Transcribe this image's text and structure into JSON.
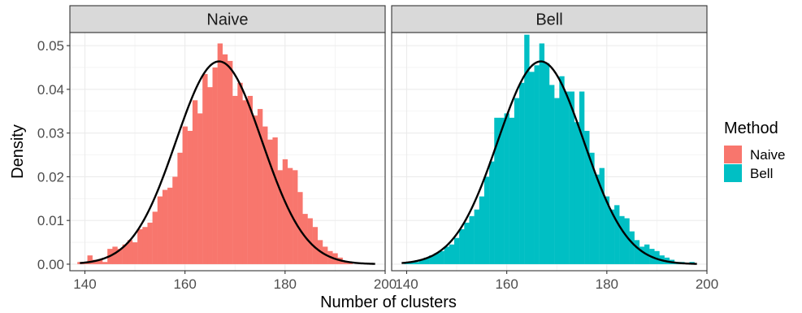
{
  "chart_data": {
    "type": "bar",
    "subtype": "faceted-histogram-with-density-curve",
    "xlabel": "Number of clusters",
    "ylabel": "Density",
    "xlim": [
      137,
      200
    ],
    "ylim": [
      -0.0015,
      0.053
    ],
    "x_ticks": [
      140,
      160,
      180,
      200
    ],
    "x_tick_labels": [
      "140",
      "160",
      "180",
      "200"
    ],
    "y_ticks": [
      0.0,
      0.01,
      0.02,
      0.03,
      0.04,
      0.05
    ],
    "y_tick_labels": [
      "0.00",
      "0.01",
      "0.02",
      "0.03",
      "0.04",
      "0.05"
    ],
    "grid": true,
    "bin_width": 1,
    "legend": {
      "title": "Method",
      "position": "right",
      "entries": [
        {
          "label": "Naive",
          "color": "#F8766D"
        },
        {
          "label": "Bell",
          "color": "#00BFC4"
        }
      ]
    },
    "curve": {
      "color": "#000000",
      "mean": 166.8,
      "sd": 8.6,
      "x_range": [
        139,
        198
      ]
    },
    "panels": [
      {
        "title": "Naive",
        "color": "#F8766D",
        "bins": [
          [
            139,
            0.0005
          ],
          [
            140,
            0.0005
          ],
          [
            141,
            0.002
          ],
          [
            142,
            0.001
          ],
          [
            143,
            0.001
          ],
          [
            144,
            0.0005
          ],
          [
            145,
            0.0035
          ],
          [
            146,
            0.004
          ],
          [
            147,
            0.0035
          ],
          [
            148,
            0.0045
          ],
          [
            149,
            0.0055
          ],
          [
            150,
            0.005
          ],
          [
            151,
            0.008
          ],
          [
            152,
            0.0085
          ],
          [
            153,
            0.0095
          ],
          [
            154,
            0.012
          ],
          [
            155,
            0.0155
          ],
          [
            156,
            0.017
          ],
          [
            157,
            0.0175
          ],
          [
            158,
            0.02
          ],
          [
            159,
            0.0255
          ],
          [
            160,
            0.0315
          ],
          [
            161,
            0.0305
          ],
          [
            162,
            0.0375
          ],
          [
            163,
            0.0345
          ],
          [
            164,
            0.0435
          ],
          [
            165,
            0.0405
          ],
          [
            166,
            0.045
          ],
          [
            167,
            0.0505
          ],
          [
            168,
            0.048
          ],
          [
            169,
            0.0465
          ],
          [
            170,
            0.0385
          ],
          [
            171,
            0.0415
          ],
          [
            172,
            0.0375
          ],
          [
            173,
            0.0385
          ],
          [
            174,
            0.034
          ],
          [
            175,
            0.0355
          ],
          [
            176,
            0.0315
          ],
          [
            177,
            0.0285
          ],
          [
            178,
            0.029
          ],
          [
            179,
            0.0215
          ],
          [
            180,
            0.024
          ],
          [
            181,
            0.022
          ],
          [
            182,
            0.0215
          ],
          [
            183,
            0.0165
          ],
          [
            184,
            0.0115
          ],
          [
            185,
            0.0105
          ],
          [
            186,
            0.0085
          ],
          [
            187,
            0.0055
          ],
          [
            188,
            0.004
          ],
          [
            189,
            0.003
          ],
          [
            190,
            0.0025
          ],
          [
            191,
            0.0015
          ],
          [
            192,
            0.0005
          ],
          [
            193,
            0.0005
          ]
        ]
      },
      {
        "title": "Bell",
        "color": "#00BFC4",
        "bins": [
          [
            140,
            0.0003
          ],
          [
            141,
            0.0005
          ],
          [
            142,
            0.0005
          ],
          [
            143,
            0.001
          ],
          [
            144,
            0.0015
          ],
          [
            145,
            0.002
          ],
          [
            146,
            0.0025
          ],
          [
            147,
            0.003
          ],
          [
            148,
            0.004
          ],
          [
            149,
            0.0045
          ],
          [
            150,
            0.006
          ],
          [
            151,
            0.008
          ],
          [
            152,
            0.0095
          ],
          [
            153,
            0.011
          ],
          [
            154,
            0.0125
          ],
          [
            155,
            0.0155
          ],
          [
            156,
            0.02
          ],
          [
            157,
            0.0235
          ],
          [
            158,
            0.0335
          ],
          [
            159,
            0.0335
          ],
          [
            160,
            0.0345
          ],
          [
            161,
            0.0335
          ],
          [
            162,
            0.038
          ],
          [
            163,
            0.0415
          ],
          [
            164,
            0.0525
          ],
          [
            165,
            0.044
          ],
          [
            166,
            0.0455
          ],
          [
            167,
            0.0505
          ],
          [
            168,
            0.046
          ],
          [
            169,
            0.041
          ],
          [
            170,
            0.038
          ],
          [
            171,
            0.043
          ],
          [
            172,
            0.0395
          ],
          [
            173,
            0.0395
          ],
          [
            174,
            0.0325
          ],
          [
            175,
            0.0395
          ],
          [
            176,
            0.0305
          ],
          [
            177,
            0.0255
          ],
          [
            178,
            0.0205
          ],
          [
            179,
            0.022
          ],
          [
            180,
            0.0155
          ],
          [
            181,
            0.0125
          ],
          [
            182,
            0.0135
          ],
          [
            183,
            0.011
          ],
          [
            184,
            0.0105
          ],
          [
            185,
            0.0075
          ],
          [
            186,
            0.0055
          ],
          [
            187,
            0.004
          ],
          [
            188,
            0.0045
          ],
          [
            189,
            0.0035
          ],
          [
            190,
            0.003
          ],
          [
            191,
            0.002
          ],
          [
            192,
            0.0015
          ],
          [
            193,
            0.001
          ],
          [
            194,
            0.0005
          ],
          [
            195,
            0.0005
          ],
          [
            196,
            0.0003
          ],
          [
            197,
            0.0005
          ]
        ]
      }
    ]
  }
}
